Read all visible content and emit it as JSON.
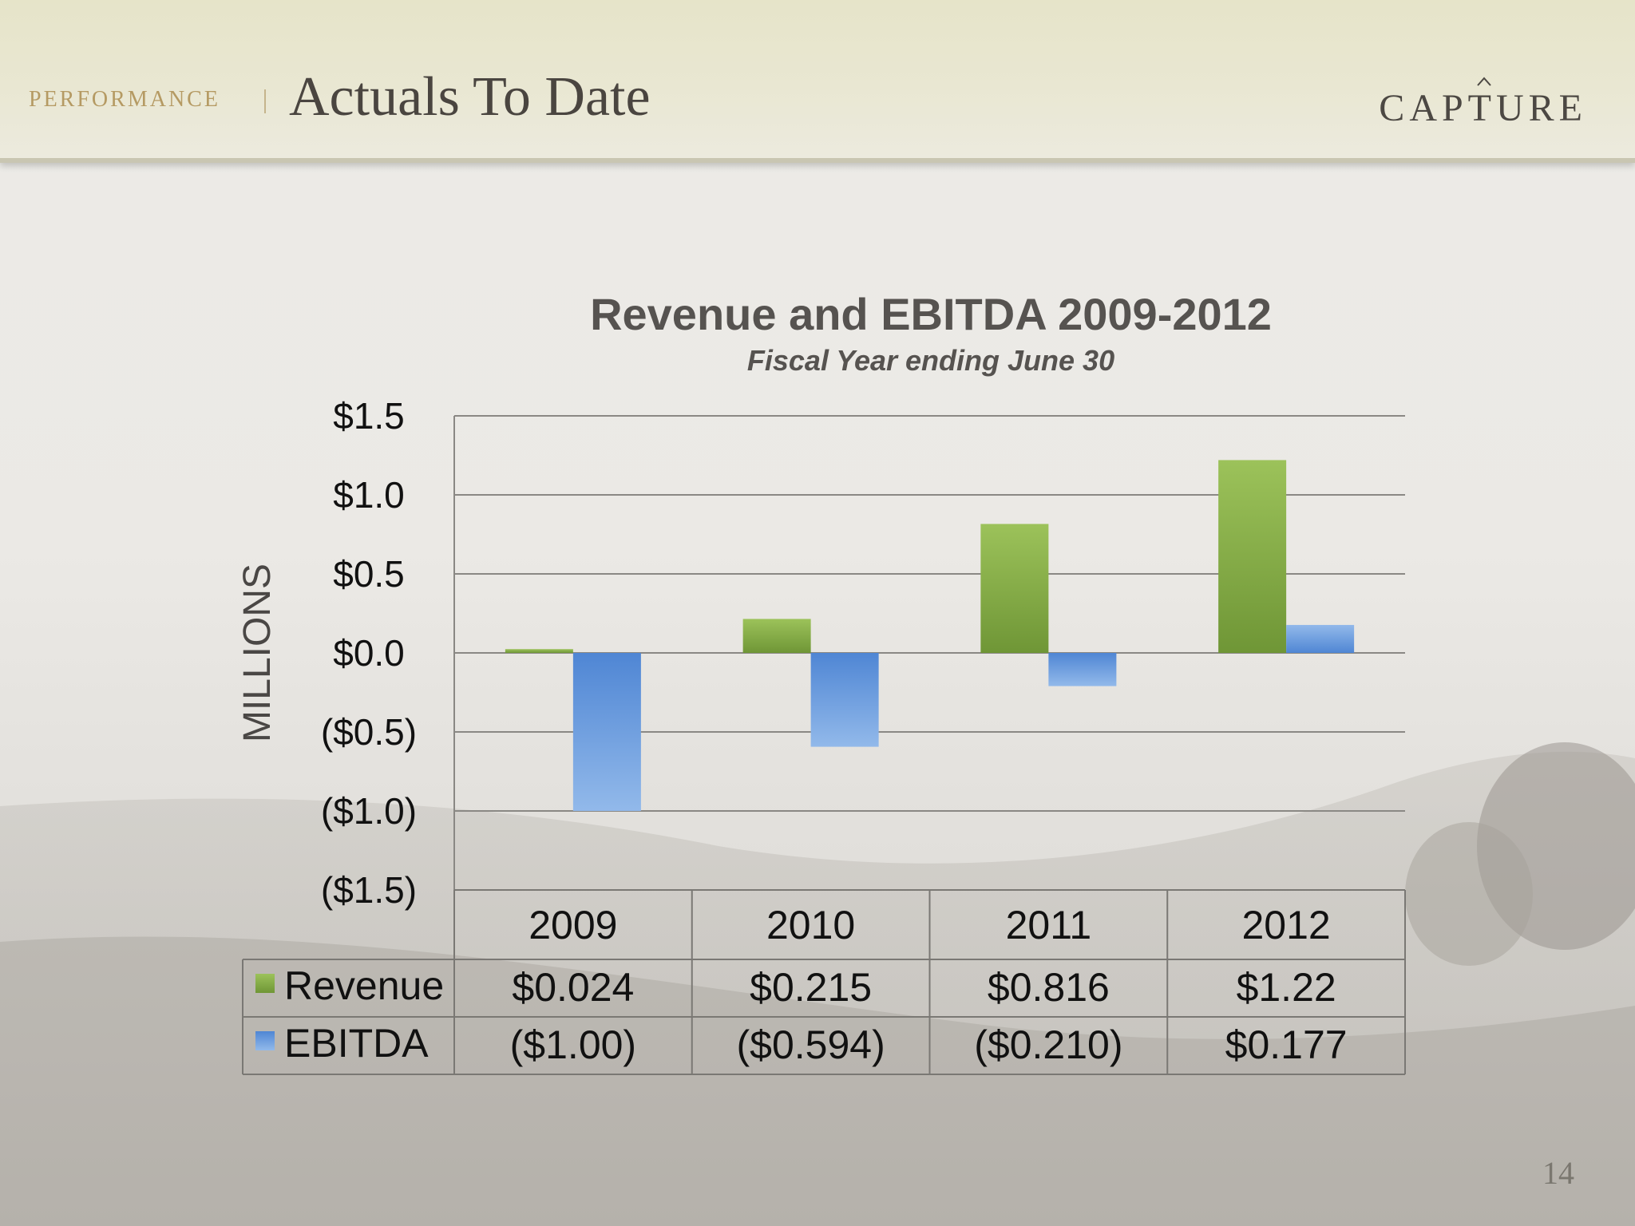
{
  "header": {
    "section": "PERFORMANCE",
    "title": "Actuals To Date",
    "logo": "CAPTURE"
  },
  "page_number": "14",
  "chart_data": {
    "type": "bar",
    "title": "Revenue and EBITDA 2009-2012",
    "subtitle": "Fiscal Year ending June 30",
    "ylabel": "MILLIONS",
    "ylim": [
      -1.5,
      1.5
    ],
    "yticks": [
      1.5,
      1.0,
      0.5,
      0.0,
      -0.5,
      -1.0,
      -1.5
    ],
    "ytick_labels": [
      "$1.5",
      "$1.0",
      "$0.5",
      "$0.0",
      "($0.5)",
      "($1.0)",
      "($1.5)"
    ],
    "grid": true,
    "categories": [
      "2009",
      "2010",
      "2011",
      "2012"
    ],
    "series": [
      {
        "name": "Revenue",
        "color": "#7fa83f",
        "values": [
          0.024,
          0.215,
          0.816,
          1.22
        ],
        "labels": [
          "$0.024",
          "$0.215",
          "$0.816",
          "$1.22"
        ]
      },
      {
        "name": "EBITDA",
        "color": "#5a8fd6",
        "values": [
          -1.0,
          -0.594,
          -0.21,
          0.177
        ],
        "labels": [
          "($1.00)",
          "($0.594)",
          "($0.210)",
          "$0.177"
        ]
      }
    ],
    "legend": "data-table"
  }
}
